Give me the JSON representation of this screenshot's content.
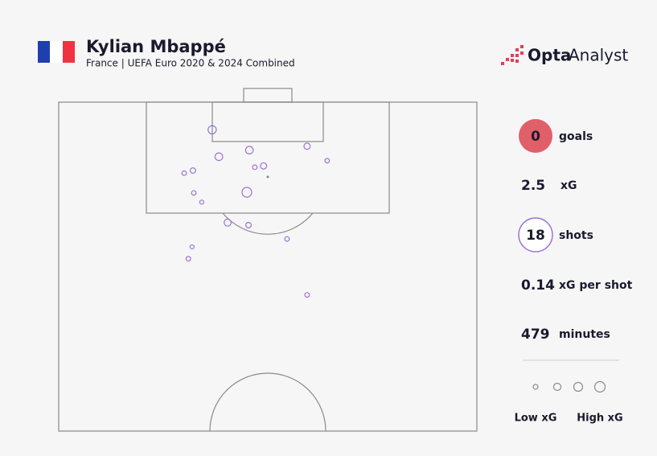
{
  "header": {
    "title": "Kylian Mbappé",
    "subtitle": "France | UEFA Euro 2020 & 2024 Combined",
    "brand": [
      "Opta",
      "Analyst"
    ]
  },
  "chart_data": {
    "type": "scatter",
    "x": [
      36.7,
      45.6,
      59.4,
      38.3,
      64.2,
      46.9,
      49.0,
      32.1,
      30.0,
      45.0,
      32.3,
      34.2,
      40.4,
      45.4,
      54.6,
      31.9,
      31.0,
      59.4
    ],
    "y": [
      95.8,
      92.7,
      93.3,
      91.7,
      91.1,
      90.1,
      90.3,
      89.6,
      89.2,
      86.3,
      86.2,
      84.8,
      81.7,
      81.3,
      79.2,
      78.0,
      76.2,
      70.7
    ],
    "sizes": [
      0.3,
      0.25,
      0.15,
      0.25,
      0.06,
      0.06,
      0.15,
      0.1,
      0.06,
      0.45,
      0.06,
      0.04,
      0.2,
      0.1,
      0.06,
      0.04,
      0.06,
      0.06
    ],
    "color": "#9b72d6",
    "xlim": [
      0,
      100
    ],
    "ylim": [
      50,
      100
    ]
  },
  "stats": [
    {
      "value": 0,
      "label": "goals"
    },
    {
      "value": 2.5,
      "label": "xG"
    },
    {
      "value": 18,
      "label": "shots"
    },
    {
      "value": 0.14,
      "label": "xG per shot"
    },
    {
      "value": 479,
      "label": "minutes"
    }
  ],
  "legend": {
    "low": "Low xG",
    "high": "High xG"
  }
}
